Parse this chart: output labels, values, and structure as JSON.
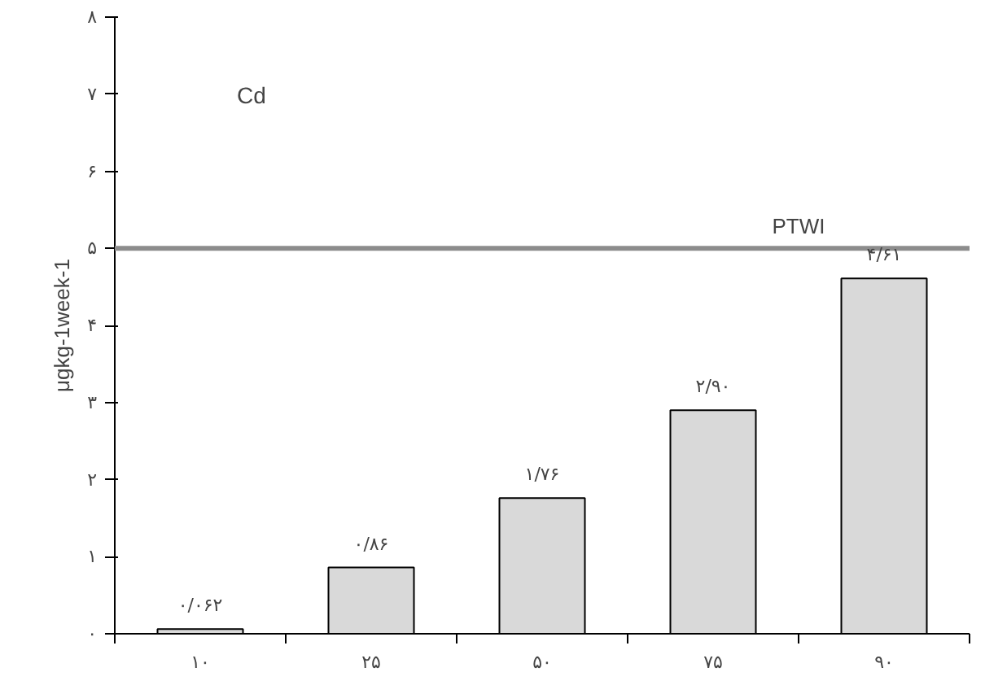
{
  "chart_data": {
    "type": "bar",
    "title": "Cd",
    "ylabel": "μgkg-1week-1",
    "categories": [
      "۱۰",
      "۲۵",
      "۵۰",
      "۷۵",
      "۹۰"
    ],
    "values": [
      0.062,
      0.86,
      1.76,
      2.9,
      4.61
    ],
    "value_labels": [
      "۰/۰۶۲",
      "۰/۸۶",
      "۱/۷۶",
      "۲/۹۰",
      "۴/۶۱"
    ],
    "color": "#d9d9d9",
    "ylim": [
      0,
      8
    ],
    "yticks": [
      {
        "value": 0,
        "label": "۰"
      },
      {
        "value": 1,
        "label": "۱"
      },
      {
        "value": 2,
        "label": "۲"
      },
      {
        "value": 3,
        "label": "۳"
      },
      {
        "value": 4,
        "label": "۴"
      },
      {
        "value": 5,
        "label": "۵"
      },
      {
        "value": 6,
        "label": "۶"
      },
      {
        "value": 7,
        "label": "۷"
      },
      {
        "value": 8,
        "label": "۸"
      }
    ],
    "ref_lines": [
      {
        "axis": "y",
        "value": 5,
        "label": "PTWI",
        "color": "#8c8c8c"
      }
    ],
    "grid": false
  }
}
